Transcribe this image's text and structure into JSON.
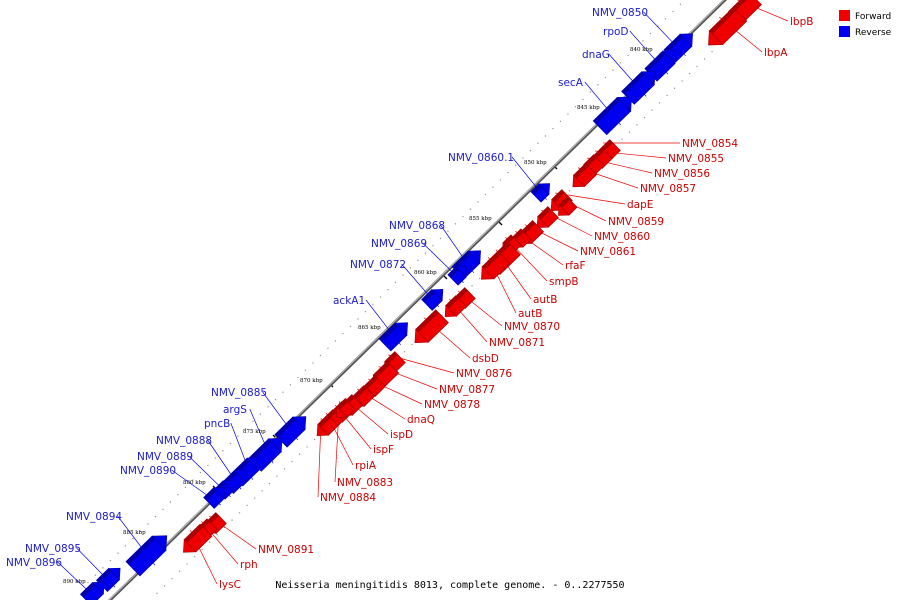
{
  "caption": "Neisseria meningitidis 8013, complete genome. - 0..2277550",
  "legend": {
    "forward": {
      "label": "Forward",
      "color": "#ee0000"
    },
    "reverse": {
      "label": "Reverse",
      "color": "#0000ee"
    }
  },
  "kbp_ticks": [
    "840 kbp",
    "845 kbp",
    "850 kbp",
    "855 kbp",
    "860 kbp",
    "865 kbp",
    "870 kbp",
    "875 kbp",
    "880 kbp",
    "885 kbp",
    "890 kbp"
  ],
  "genes": [
    {
      "name": "lbpB",
      "strand": "forward"
    },
    {
      "name": "lbpA",
      "strand": "forward"
    },
    {
      "name": "NMV_0850",
      "strand": "reverse"
    },
    {
      "name": "rpoD",
      "strand": "reverse"
    },
    {
      "name": "dnaG",
      "strand": "reverse"
    },
    {
      "name": "secA",
      "strand": "reverse"
    },
    {
      "name": "NMV_0854",
      "strand": "forward"
    },
    {
      "name": "NMV_0855",
      "strand": "forward"
    },
    {
      "name": "NMV_0856",
      "strand": "forward"
    },
    {
      "name": "NMV_0857",
      "strand": "forward"
    },
    {
      "name": "dapE",
      "strand": "forward"
    },
    {
      "name": "NMV_0859",
      "strand": "forward"
    },
    {
      "name": "NMV_0860",
      "strand": "forward"
    },
    {
      "name": "NMV_0861",
      "strand": "forward"
    },
    {
      "name": "NMV_0860.1",
      "strand": "reverse"
    },
    {
      "name": "rfaF",
      "strand": "forward"
    },
    {
      "name": "smpB",
      "strand": "forward"
    },
    {
      "name": "autB",
      "strand": "forward"
    },
    {
      "name": "autB",
      "strand": "forward"
    },
    {
      "name": "NMV_0868",
      "strand": "reverse"
    },
    {
      "name": "NMV_0869",
      "strand": "reverse"
    },
    {
      "name": "NMV_0872",
      "strand": "reverse"
    },
    {
      "name": "NMV_0870",
      "strand": "forward"
    },
    {
      "name": "NMV_0871",
      "strand": "forward"
    },
    {
      "name": "ackA1",
      "strand": "reverse"
    },
    {
      "name": "dsbD",
      "strand": "forward"
    },
    {
      "name": "NMV_0876",
      "strand": "forward"
    },
    {
      "name": "NMV_0877",
      "strand": "forward"
    },
    {
      "name": "NMV_0878",
      "strand": "forward"
    },
    {
      "name": "dnaQ",
      "strand": "forward"
    },
    {
      "name": "ispD",
      "strand": "forward"
    },
    {
      "name": "ispF",
      "strand": "forward"
    },
    {
      "name": "rpiA",
      "strand": "forward"
    },
    {
      "name": "NMV_0883",
      "strand": "forward"
    },
    {
      "name": "NMV_0884",
      "strand": "forward"
    },
    {
      "name": "NMV_0885",
      "strand": "reverse"
    },
    {
      "name": "argS",
      "strand": "reverse"
    },
    {
      "name": "pncB",
      "strand": "reverse"
    },
    {
      "name": "NMV_0888",
      "strand": "reverse"
    },
    {
      "name": "NMV_0889",
      "strand": "reverse"
    },
    {
      "name": "NMV_0890",
      "strand": "reverse"
    },
    {
      "name": "NMV_0891",
      "strand": "forward"
    },
    {
      "name": "rph",
      "strand": "forward"
    },
    {
      "name": "lysC",
      "strand": "forward"
    },
    {
      "name": "NMV_0894",
      "strand": "reverse"
    },
    {
      "name": "NMV_0895",
      "strand": "reverse"
    },
    {
      "name": "NMV_0896",
      "strand": "reverse"
    }
  ]
}
